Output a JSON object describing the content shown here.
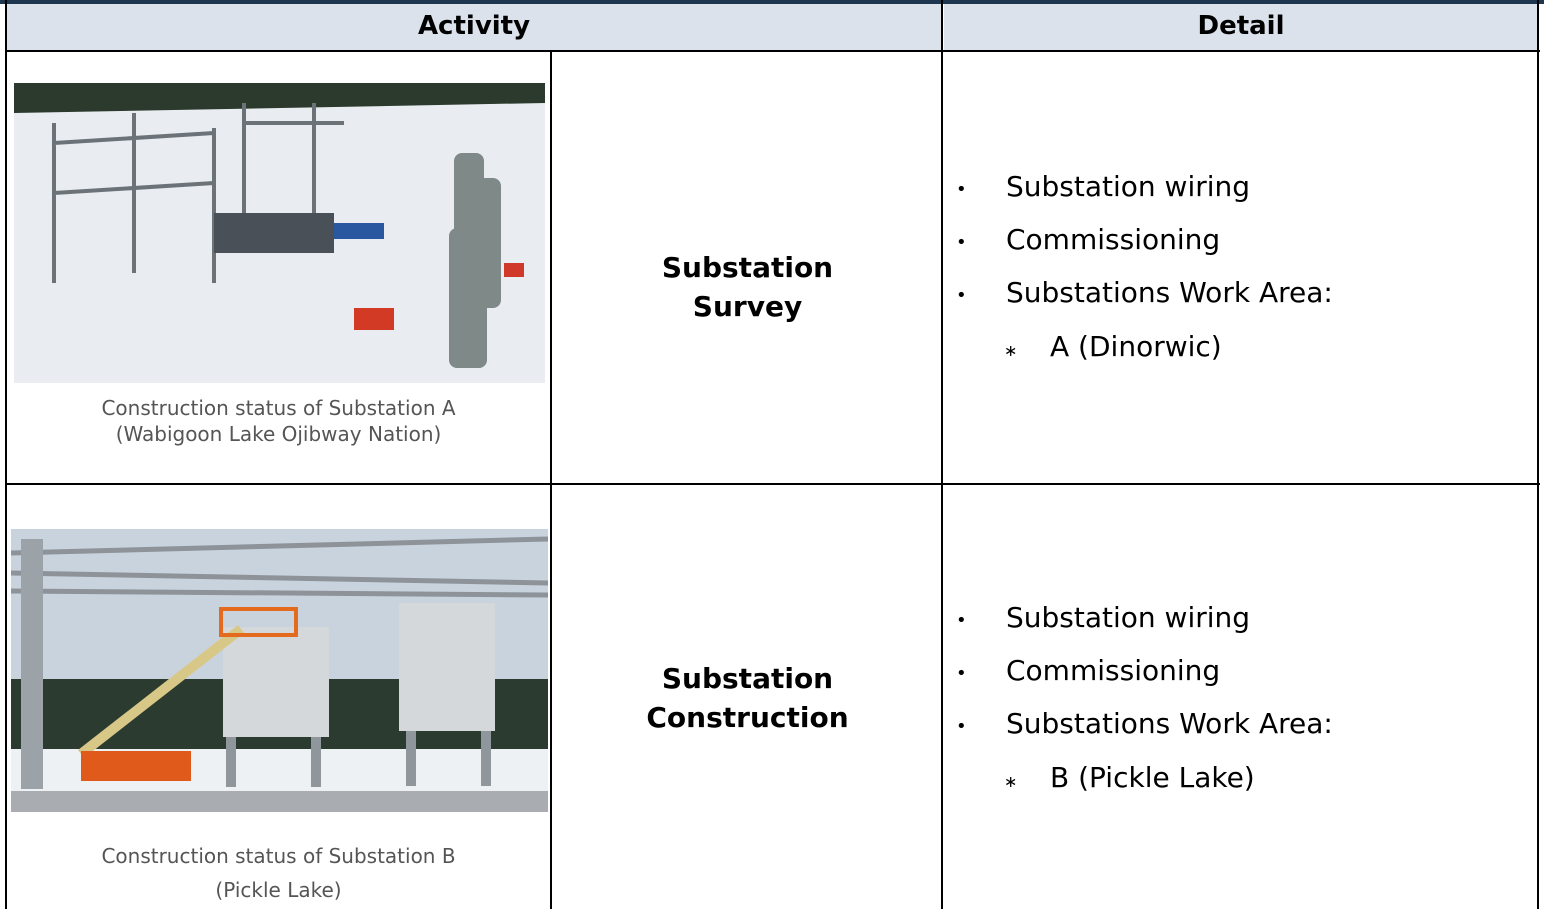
{
  "header": {
    "activity": "Activity",
    "detail": "Detail"
  },
  "rows": [
    {
      "caption": [
        "Construction status of Substation A",
        "(Wabigoon Lake Ojibway Nation)"
      ],
      "activity": "Substation Survey",
      "details": [
        "Substation wiring",
        "Commissioning",
        "Substations Work Area:"
      ],
      "subitems": [
        "A (Dinorwic)"
      ]
    },
    {
      "caption": [
        "Construction status of Substation B",
        "(Pickle Lake)"
      ],
      "activity": "Substation Construction",
      "details": [
        "Substation wiring",
        "Commissioning",
        "Substations Work Area:"
      ],
      "subitems": [
        "B (Pickle Lake)"
      ]
    }
  ]
}
